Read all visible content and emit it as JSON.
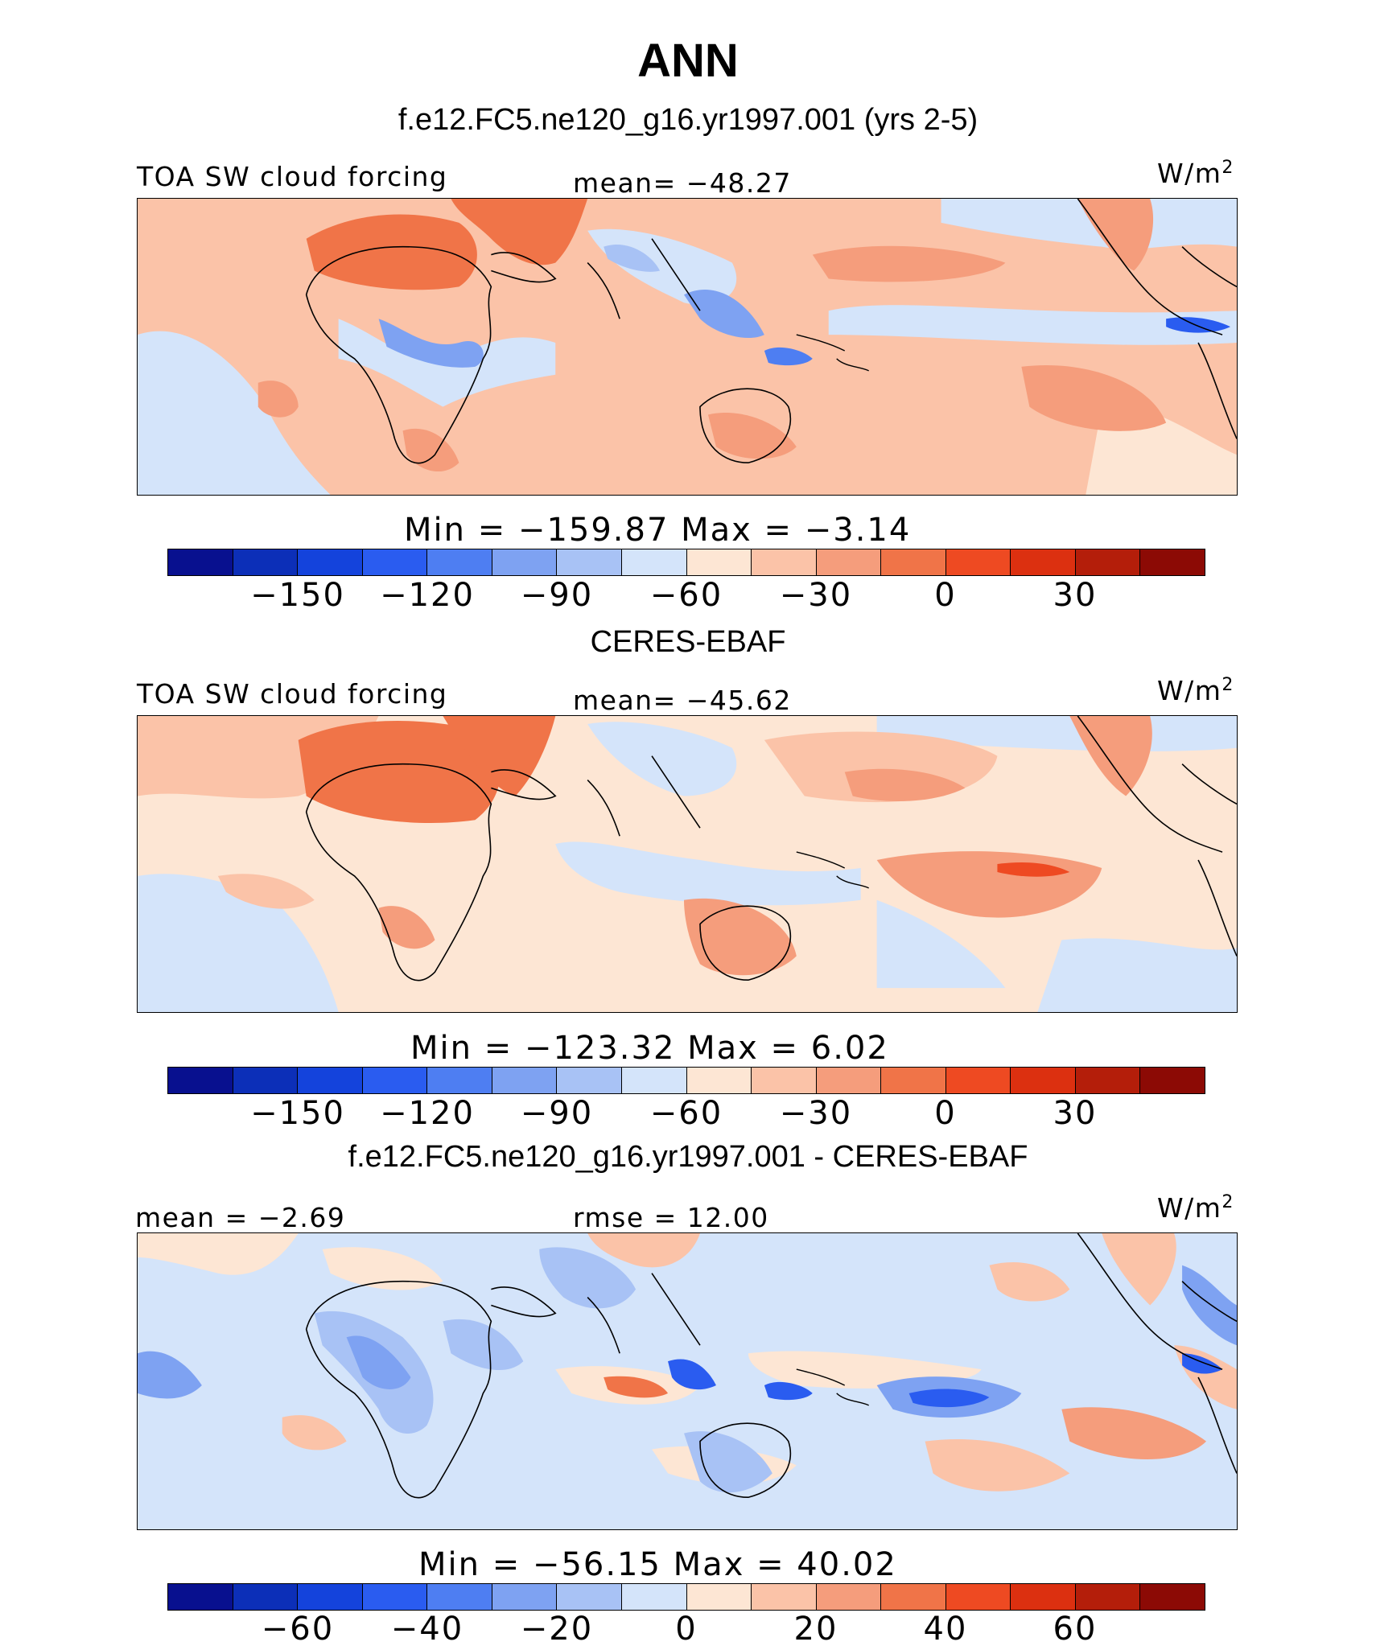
{
  "title": "ANN",
  "colormap": [
    "#08108f",
    "#0c2fb8",
    "#1443dc",
    "#2a5cf0",
    "#4e7ef2",
    "#7ea2f2",
    "#a8c2f5",
    "#d4e4fa",
    "#fde6d4",
    "#fbc3a8",
    "#f59d7c",
    "#f07448",
    "#ee4a22",
    "#dc3010",
    "#b41e0a",
    "#8c0a05"
  ],
  "panels": [
    {
      "id": "model",
      "title": "f.e12.FC5.ne120_g16.yr1997.001 (yrs 2-5)",
      "left_label": "TOA SW cloud forcing",
      "center_label": "mean=  −48.27",
      "right_label": "W/m",
      "right_label_sup": "2",
      "minmax": "Min  =  −159.87  Max  =    −3.14",
      "ticks": [
        "−150",
        "−120",
        "−90",
        "−60",
        "−30",
        "0",
        "30"
      ]
    },
    {
      "id": "obs",
      "title": "CERES-EBAF",
      "left_label": "TOA SW cloud forcing",
      "center_label": "mean=  −45.62",
      "right_label": "W/m",
      "right_label_sup": "2",
      "minmax": "Min  =  −123.32  Max  =     6.02",
      "ticks": [
        "−150",
        "−120",
        "−90",
        "−60",
        "−30",
        "0",
        "30"
      ]
    },
    {
      "id": "diff",
      "title": "f.e12.FC5.ne120_g16.yr1997.001 - CERES-EBAF",
      "left_label": "mean  =   −2.69",
      "center_label": "rmse  =   12.00",
      "right_label": "W/m",
      "right_label_sup": "2",
      "minmax": "Min  =  −56.15  Max  =   40.02",
      "ticks": [
        "−60",
        "−40",
        "−20",
        "0",
        "20",
        "40",
        "60"
      ]
    }
  ]
}
